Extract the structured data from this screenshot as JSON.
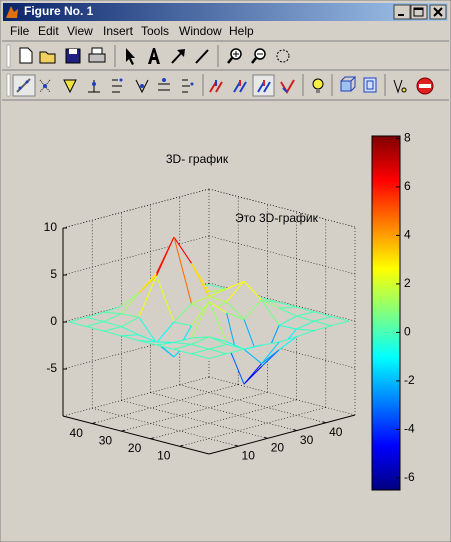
{
  "window": {
    "title": "Figure No. 1"
  },
  "menu": [
    "File",
    "Edit",
    "View",
    "Insert",
    "Tools",
    "Window",
    "Help"
  ],
  "chart_data": {
    "type": "mesh",
    "title": "3D- график",
    "annotation": "Это 3D-график",
    "x": [
      1,
      7,
      13,
      19,
      25,
      31,
      37,
      43,
      49
    ],
    "y": [
      1,
      7,
      13,
      19,
      25,
      31,
      37,
      43,
      49
    ],
    "z": [
      [
        0,
        0,
        0,
        -0.08,
        -0.25,
        -0.17,
        -0.03,
        0,
        0
      ],
      [
        0,
        0.01,
        0.01,
        -1.0,
        -3.02,
        -2.05,
        -0.35,
        -0.01,
        0
      ],
      [
        0,
        0.03,
        0.33,
        -0.68,
        -5.68,
        -4.32,
        -0.44,
        0.05,
        0
      ],
      [
        -0.02,
        -0.25,
        -0.28,
        3.09,
        1.4,
        0.21,
        1.78,
        0.41,
        0.02
      ],
      [
        -0.04,
        -0.69,
        -2.77,
        0.06,
        0.98,
        1.57,
        3.27,
        0.7,
        0.03
      ],
      [
        -0.02,
        -0.42,
        -1.76,
        -0.05,
        1.42,
        1.65,
        1.99,
        0.4,
        0.02
      ],
      [
        0,
        -0.03,
        0.48,
        4.37,
        8,
        4.72,
        1.19,
        0.12,
        0
      ],
      [
        0,
        0.02,
        0.36,
        2.07,
        3.65,
        2.09,
        0.41,
        0.03,
        0
      ],
      [
        0,
        0,
        0.03,
        0.17,
        0.3,
        0.17,
        0.03,
        0,
        0
      ]
    ],
    "xlim": [
      0,
      50
    ],
    "ylim": [
      0,
      50
    ],
    "zlim": [
      -10,
      10
    ],
    "xticks": [
      10,
      20,
      30,
      40
    ],
    "yticks": [
      10,
      20,
      30,
      40
    ],
    "zticks": [
      -5,
      0,
      5,
      10
    ],
    "colormap": "jet",
    "clim": [
      -6.5,
      8.1
    ],
    "cticks": [
      -6,
      -4,
      -2,
      0,
      2,
      4,
      6,
      8
    ],
    "grid": true
  }
}
